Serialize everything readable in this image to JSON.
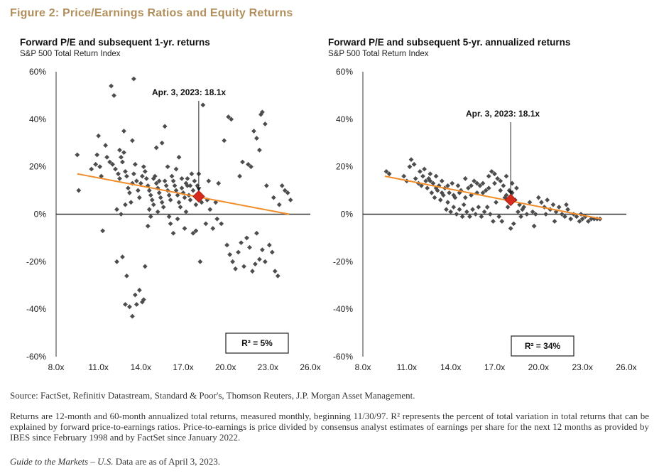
{
  "figure_title": "Figure 2: Price/Earnings Ratios and Equity Returns",
  "panels": [
    {
      "title": "Forward P/E and subsequent 1-yr. returns",
      "subtitle": "S&P 500 Total Return Index",
      "annotation": "Apr. 3, 2023: 18.1x",
      "r2_label": "R² = 5%"
    },
    {
      "title": "Forward P/E and subsequent 5-yr. annualized returns",
      "subtitle": "S&P 500 Total Return Index",
      "annotation": "Apr. 3, 2023: 18.1x",
      "r2_label": "R² = 34%"
    }
  ],
  "source": "Source: FactSet, Refinitiv Datastream, Standard & Poor's, Thomson Reuters, J.P. Morgan Asset Management.",
  "notes": "Returns are 12-month and 60-month annualized total returns, measured monthly, beginning 11/30/97. R² represents the percent of total variation in total returns that can be explained by forward price-to-earnings ratios. Price-to-earnings is price divided by consensus analyst estimates of earnings per share for the next 12 months as provided by IBES since February 1998 and by FactSet since January 2022.",
  "guide_italic": "Guide to the Markets – U.S.",
  "guide_text": " Data are as of April 3, 2023.",
  "colors": {
    "points": "#4d4d4d",
    "trend": "#f28c28",
    "current": "#d42b1e",
    "title": "#b08f5c"
  },
  "chart_data": [
    {
      "type": "scatter",
      "title": "Forward P/E and subsequent 1-yr. returns",
      "subtitle": "S&P 500 Total Return Index",
      "x_ticks": [
        "8.0x",
        "11.0x",
        "14.0x",
        "17.0x",
        "20.0x",
        "23.0x",
        "26.0x"
      ],
      "y_ticks": [
        "60%",
        "40%",
        "20%",
        "0%",
        "-20%",
        "-40%",
        "-60%"
      ],
      "xlim": [
        8,
        26
      ],
      "ylim": [
        -60,
        60
      ],
      "trendline": {
        "x": [
          9.5,
          24.5
        ],
        "y": [
          17,
          0
        ]
      },
      "current": {
        "x": 18.1,
        "y": 7.5,
        "label": "Apr. 3, 2023: 18.1x"
      },
      "r2": "R² = 5%",
      "points": [
        [
          9.5,
          25
        ],
        [
          9.6,
          10
        ],
        [
          10.5,
          19
        ],
        [
          11,
          33
        ],
        [
          11.2,
          16
        ],
        [
          11.3,
          -7
        ],
        [
          11.5,
          29
        ],
        [
          11.9,
          54
        ],
        [
          12.1,
          50
        ],
        [
          12.3,
          -20
        ],
        [
          12.5,
          27
        ],
        [
          12.6,
          0
        ],
        [
          12.7,
          -18
        ],
        [
          12.8,
          35
        ],
        [
          13,
          -26
        ],
        [
          12.9,
          -38
        ],
        [
          13.2,
          -39
        ],
        [
          13.4,
          -43
        ],
        [
          13.6,
          -34
        ],
        [
          13.7,
          -38
        ],
        [
          13.9,
          -32
        ],
        [
          14.1,
          -37
        ],
        [
          14.2,
          -36
        ],
        [
          13.5,
          57
        ],
        [
          13.4,
          31
        ],
        [
          14.3,
          -22
        ],
        [
          14.5,
          -5
        ],
        [
          14.7,
          -1
        ],
        [
          14.9,
          15
        ],
        [
          15.1,
          28
        ],
        [
          15.3,
          14
        ],
        [
          15.5,
          30
        ],
        [
          15.7,
          37
        ],
        [
          15.9,
          20
        ],
        [
          16.1,
          -4
        ],
        [
          16.3,
          -8
        ],
        [
          16.5,
          19
        ],
        [
          16.7,
          24
        ],
        [
          16.9,
          15
        ],
        [
          17.1,
          -6
        ],
        [
          17.3,
          12
        ],
        [
          17.5,
          6
        ],
        [
          17.7,
          -8
        ],
        [
          17.9,
          -7
        ],
        [
          18.1,
          17
        ],
        [
          18.2,
          -20
        ],
        [
          18.4,
          46
        ],
        [
          18.6,
          -4
        ],
        [
          18.7,
          6
        ],
        [
          18.9,
          2
        ],
        [
          19.1,
          -6
        ],
        [
          19.3,
          5
        ],
        [
          19.5,
          13
        ],
        [
          19.7,
          -4
        ],
        [
          19.9,
          31
        ],
        [
          20.1,
          -13
        ],
        [
          20.3,
          -17
        ],
        [
          20.5,
          -20
        ],
        [
          20.7,
          -23
        ],
        [
          20.9,
          -16
        ],
        [
          21.1,
          -12
        ],
        [
          21.3,
          -22
        ],
        [
          21.5,
          -10
        ],
        [
          21.7,
          -14
        ],
        [
          21.9,
          -24
        ],
        [
          22.1,
          -21
        ],
        [
          22.2,
          -8
        ],
        [
          22.4,
          -19
        ],
        [
          22.6,
          -15
        ],
        [
          22.8,
          -20
        ],
        [
          20.2,
          41
        ],
        [
          20.4,
          40
        ],
        [
          21,
          16
        ],
        [
          21.2,
          22
        ],
        [
          21.6,
          21
        ],
        [
          21.8,
          20
        ],
        [
          22,
          35
        ],
        [
          22.2,
          32
        ],
        [
          22.4,
          27
        ],
        [
          22.5,
          42
        ],
        [
          22.6,
          43
        ],
        [
          22.8,
          38
        ],
        [
          22.9,
          12
        ],
        [
          23.1,
          -13
        ],
        [
          23.3,
          -16
        ],
        [
          23.5,
          -24
        ],
        [
          23.7,
          -26
        ],
        [
          23.4,
          7
        ],
        [
          23.8,
          4
        ],
        [
          24,
          12
        ],
        [
          24.2,
          10
        ],
        [
          24.4,
          9
        ],
        [
          24.6,
          6
        ],
        [
          10.8,
          21
        ],
        [
          10.9,
          25
        ],
        [
          11.1,
          20
        ],
        [
          11.6,
          24
        ],
        [
          11.8,
          22
        ],
        [
          12,
          21
        ],
        [
          12.2,
          19
        ],
        [
          12.4,
          17
        ],
        [
          12.5,
          15
        ],
        [
          12.6,
          24
        ],
        [
          12.7,
          22
        ],
        [
          12.8,
          26
        ],
        [
          12.9,
          18
        ],
        [
          13,
          16
        ],
        [
          13.1,
          11
        ],
        [
          13.2,
          9
        ],
        [
          13.3,
          5
        ],
        [
          13.4,
          13
        ],
        [
          13.5,
          17
        ],
        [
          13.6,
          21
        ],
        [
          13.7,
          14
        ],
        [
          13.8,
          10
        ],
        [
          13.9,
          7
        ],
        [
          14,
          13
        ],
        [
          14.1,
          16
        ],
        [
          14.2,
          20
        ],
        [
          14.3,
          18
        ],
        [
          14.4,
          15
        ],
        [
          14.5,
          12
        ],
        [
          14.6,
          10
        ],
        [
          14.7,
          8
        ],
        [
          14.8,
          6
        ],
        [
          14.9,
          4
        ],
        [
          15,
          16
        ],
        [
          15.1,
          13
        ],
        [
          15.2,
          11
        ],
        [
          15.3,
          9
        ],
        [
          15.4,
          7
        ],
        [
          15.5,
          5
        ],
        [
          15.6,
          3
        ],
        [
          15.7,
          14
        ],
        [
          15.8,
          12
        ],
        [
          15.9,
          10
        ],
        [
          16,
          8
        ],
        [
          16.1,
          6
        ],
        [
          16.2,
          16
        ],
        [
          16.3,
          14
        ],
        [
          16.4,
          12
        ],
        [
          16.5,
          10
        ],
        [
          16.6,
          8
        ],
        [
          16.7,
          5
        ],
        [
          16.8,
          3
        ],
        [
          16.9,
          11
        ],
        [
          17,
          9
        ],
        [
          17.1,
          7
        ],
        [
          17.2,
          13
        ],
        [
          17.3,
          15
        ],
        [
          17.4,
          8
        ],
        [
          17.5,
          12
        ],
        [
          17.6,
          17
        ],
        [
          17.7,
          10
        ],
        [
          17.8,
          14
        ],
        [
          17.9,
          4
        ],
        [
          18,
          12
        ],
        [
          18.3,
          5
        ],
        [
          12.3,
          2
        ],
        [
          12.9,
          4
        ],
        [
          14.6,
          2
        ],
        [
          15.2,
          1
        ],
        [
          16,
          -1
        ],
        [
          16.6,
          -2
        ],
        [
          17.2,
          1
        ],
        [
          18.8,
          14
        ],
        [
          19.4,
          -2
        ]
      ]
    },
    {
      "type": "scatter",
      "title": "Forward P/E and subsequent 5-yr. annualized returns",
      "subtitle": "S&P 500 Total Return Index",
      "x_ticks": [
        "8.0x",
        "11.0x",
        "14.0x",
        "17.0x",
        "20.0x",
        "23.0x",
        "26.0x"
      ],
      "y_ticks": [
        "60%",
        "40%",
        "20%",
        "0%",
        "-20%",
        "-40%",
        "-60%"
      ],
      "xlim": [
        8,
        26
      ],
      "ylim": [
        -60,
        60
      ],
      "trendline": {
        "x": [
          9.5,
          24.3
        ],
        "y": [
          16,
          -2
        ]
      },
      "current": {
        "x": 18.1,
        "y": 6,
        "label": "Apr. 3, 2023: 18.1x"
      },
      "r2": "R² = 34%",
      "points": [
        [
          9.6,
          18
        ],
        [
          9.8,
          17
        ],
        [
          10.8,
          16
        ],
        [
          11,
          14
        ],
        [
          11.2,
          20
        ],
        [
          11.3,
          23
        ],
        [
          11.5,
          21
        ],
        [
          11.6,
          15
        ],
        [
          11.8,
          13
        ],
        [
          11.9,
          18
        ],
        [
          12,
          12
        ],
        [
          12.1,
          16
        ],
        [
          12.2,
          19
        ],
        [
          12.3,
          14
        ],
        [
          12.4,
          11
        ],
        [
          12.5,
          15
        ],
        [
          12.6,
          17
        ],
        [
          12.7,
          9
        ],
        [
          12.8,
          13
        ],
        [
          12.9,
          7
        ],
        [
          13,
          16
        ],
        [
          13.1,
          10
        ],
        [
          13.2,
          12
        ],
        [
          13.3,
          6
        ],
        [
          13.4,
          14
        ],
        [
          13.5,
          8
        ],
        [
          13.6,
          11
        ],
        [
          13.7,
          2
        ],
        [
          13.8,
          5
        ],
        [
          13.9,
          9
        ],
        [
          14,
          1
        ],
        [
          14.1,
          13
        ],
        [
          14.2,
          3
        ],
        [
          14.3,
          7
        ],
        [
          14.4,
          0
        ],
        [
          14.5,
          12
        ],
        [
          14.6,
          2
        ],
        [
          14.7,
          10
        ],
        [
          14.8,
          -1
        ],
        [
          14.9,
          4
        ],
        [
          15,
          15
        ],
        [
          15.1,
          1
        ],
        [
          15.2,
          11
        ],
        [
          15.3,
          -1
        ],
        [
          15.4,
          8
        ],
        [
          15.5,
          2
        ],
        [
          15.6,
          14
        ],
        [
          15.7,
          0
        ],
        [
          15.8,
          9
        ],
        [
          15.9,
          3
        ],
        [
          16,
          12
        ],
        [
          16.1,
          -1
        ],
        [
          16.2,
          13
        ],
        [
          16.3,
          1
        ],
        [
          16.4,
          10
        ],
        [
          16.5,
          3
        ],
        [
          16.6,
          16
        ],
        [
          16.7,
          0
        ],
        [
          16.8,
          18
        ],
        [
          16.9,
          -3
        ],
        [
          17,
          17
        ],
        [
          17.1,
          5
        ],
        [
          17.2,
          15
        ],
        [
          17.3,
          -1
        ],
        [
          17.4,
          14
        ],
        [
          17.5,
          -3
        ],
        [
          17.6,
          12
        ],
        [
          17.7,
          7
        ],
        [
          17.8,
          16
        ],
        [
          17.9,
          3
        ],
        [
          18,
          10
        ],
        [
          18.1,
          -6
        ],
        [
          18.2,
          9
        ],
        [
          18.3,
          -4
        ],
        [
          18.4,
          6
        ],
        [
          18.5,
          11
        ],
        [
          18.6,
          1
        ],
        [
          18.7,
          4
        ],
        [
          18.8,
          -1
        ],
        [
          18.9,
          2
        ],
        [
          19,
          3
        ],
        [
          19.2,
          0
        ],
        [
          19.4,
          5
        ],
        [
          19.6,
          1
        ],
        [
          19.8,
          0
        ],
        [
          20,
          7
        ],
        [
          20.2,
          5
        ],
        [
          20.4,
          3
        ],
        [
          20.6,
          6
        ],
        [
          20.8,
          2
        ],
        [
          21,
          4
        ],
        [
          21.2,
          1
        ],
        [
          21.4,
          3
        ],
        [
          21.6,
          0
        ],
        [
          21.8,
          -1
        ],
        [
          22,
          2
        ],
        [
          22.2,
          -2
        ],
        [
          22.4,
          0
        ],
        [
          22.6,
          -1
        ],
        [
          22.8,
          -3
        ],
        [
          23,
          -2
        ],
        [
          23.2,
          -1
        ],
        [
          23.4,
          -3
        ],
        [
          23.6,
          -2
        ],
        [
          23.8,
          -2
        ],
        [
          24,
          -2
        ],
        [
          24.2,
          -2
        ],
        [
          12.6,
          14
        ],
        [
          13,
          11
        ],
        [
          13.4,
          9
        ],
        [
          13.8,
          12
        ],
        [
          14.2,
          8
        ],
        [
          14.6,
          9
        ],
        [
          15,
          7
        ],
        [
          15.4,
          12
        ],
        [
          15.8,
          13
        ],
        [
          16.2,
          9
        ],
        [
          16.6,
          11
        ],
        [
          17,
          13
        ],
        [
          17.4,
          10
        ],
        [
          17.8,
          8
        ],
        [
          18.2,
          13
        ],
        [
          19.7,
          -5
        ],
        [
          21.1,
          -3
        ],
        [
          20.5,
          0
        ],
        [
          21.9,
          4
        ],
        [
          22.9,
          0
        ]
      ]
    }
  ]
}
